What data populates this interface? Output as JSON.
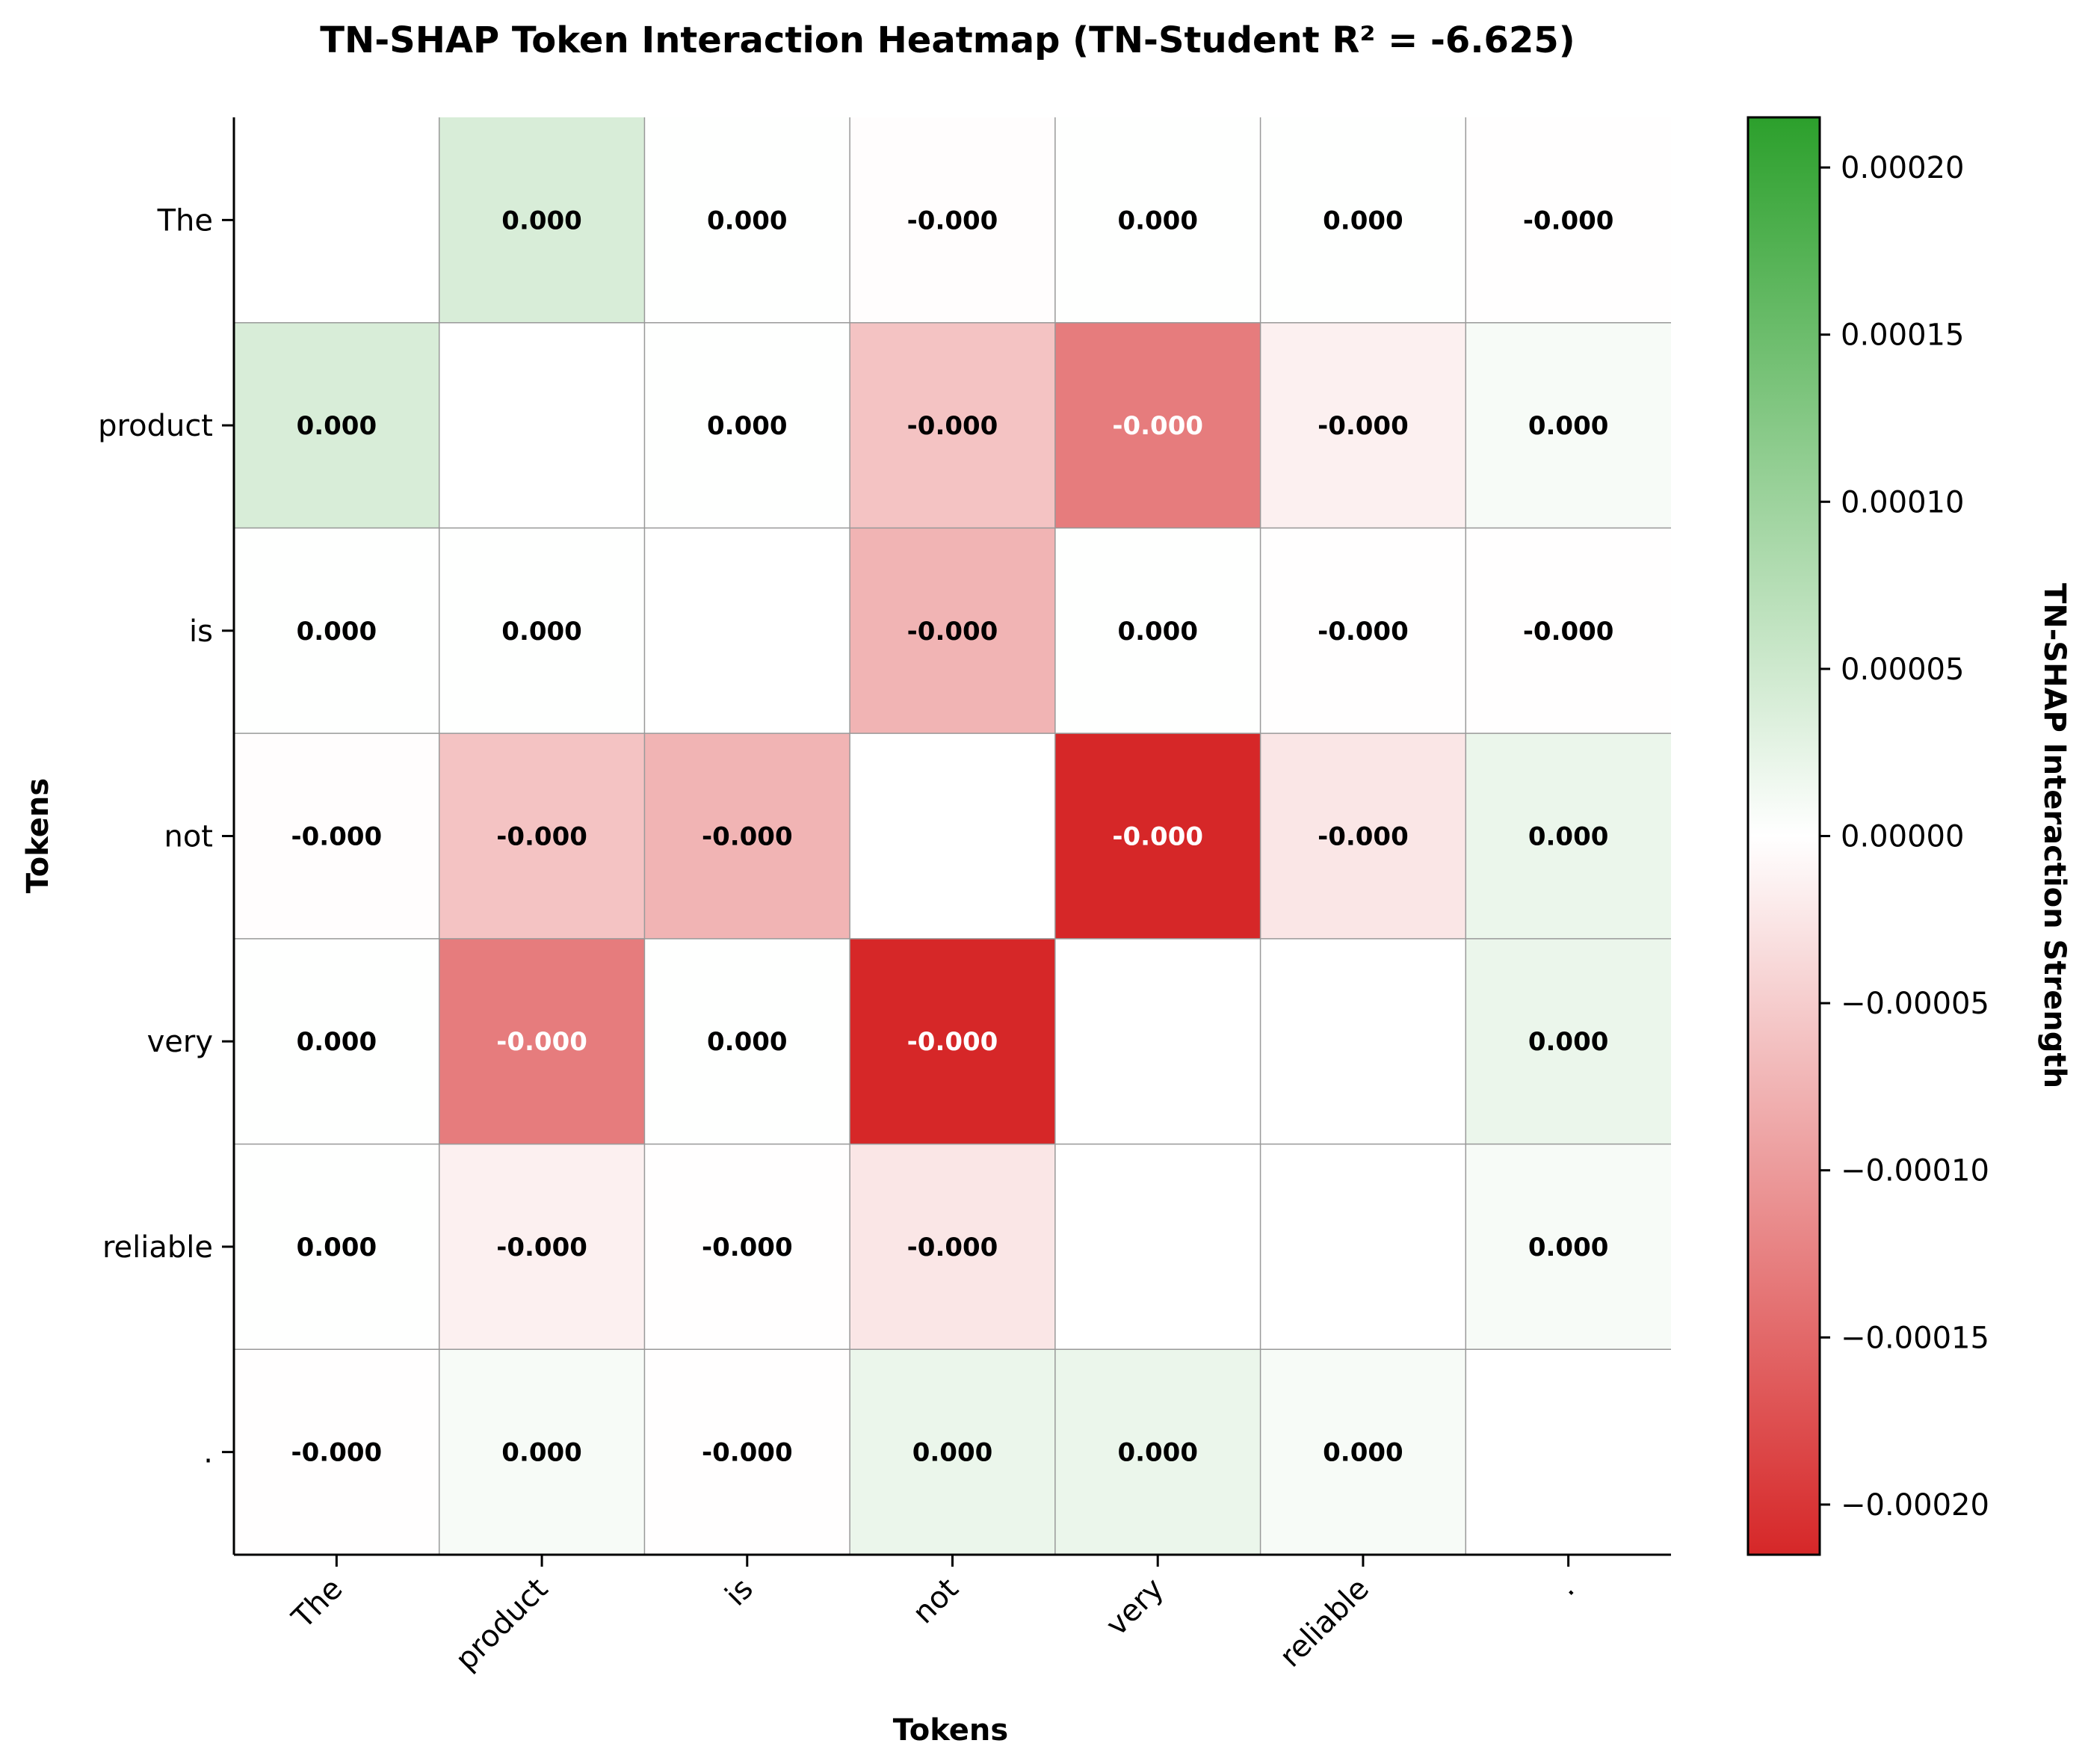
{
  "chart_data": {
    "type": "heatmap",
    "title": "TN-SHAP Token Interaction Heatmap (TN-Student R² = -6.625)",
    "xlabel": "Tokens",
    "ylabel": "Tokens",
    "x_tokens": [
      "The",
      "product",
      "is",
      "not",
      "very",
      "reliable",
      "."
    ],
    "y_tokens": [
      "The",
      "product",
      "is",
      "not",
      "very",
      "reliable",
      "."
    ],
    "values": [
      [
        null,
        4e-05,
        1e-06,
        -2e-06,
        1e-06,
        1e-06,
        -1e-06
      ],
      [
        4e-05,
        null,
        1e-06,
        -6e-05,
        -0.00013,
        -1.5e-05,
        8e-06
      ],
      [
        1e-06,
        1e-06,
        null,
        -7.5e-05,
        1e-06,
        -1e-06,
        -1e-06
      ],
      [
        -2e-06,
        -6e-05,
        -7.5e-05,
        null,
        -0.000215,
        -2.5e-05,
        2e-05
      ],
      [
        1e-06,
        -0.00013,
        1e-06,
        -0.000215,
        null,
        null,
        2e-05
      ],
      [
        1e-06,
        -1.5e-05,
        -1e-06,
        -2.5e-05,
        null,
        null,
        8e-06
      ],
      [
        -1e-06,
        8e-06,
        -1e-06,
        2e-05,
        2e-05,
        8e-06,
        null
      ]
    ],
    "labels": [
      [
        "",
        "0.000",
        "0.000",
        "-0.000",
        "0.000",
        "0.000",
        "-0.000"
      ],
      [
        "0.000",
        "",
        "0.000",
        "-0.000",
        "-0.000",
        "-0.000",
        "0.000"
      ],
      [
        "0.000",
        "0.000",
        "",
        "-0.000",
        "0.000",
        "-0.000",
        "-0.000"
      ],
      [
        "-0.000",
        "-0.000",
        "-0.000",
        "",
        "-0.000",
        "-0.000",
        "0.000"
      ],
      [
        "0.000",
        "-0.000",
        "0.000",
        "-0.000",
        "",
        "",
        "0.000"
      ],
      [
        "0.000",
        "-0.000",
        "-0.000",
        "-0.000",
        "",
        "",
        "0.000"
      ],
      [
        "-0.000",
        "0.000",
        "-0.000",
        "0.000",
        "0.000",
        "0.000",
        ""
      ]
    ],
    "vmin": -0.000215,
    "vmax": 0.000215,
    "colormap": {
      "negative": "#d62728",
      "zero": "#ffffff",
      "positive": "#2ca02c"
    },
    "colorbar": {
      "label": "TN-SHAP Interaction Strength",
      "ticks": [
        0.0002,
        0.00015,
        0.0001,
        5e-05,
        0,
        -5e-05,
        -0.0001,
        -0.00015,
        -0.0002
      ],
      "tick_labels": [
        "0.00020",
        "0.00015",
        "0.00010",
        "0.00005",
        "0.00000",
        "−0.00005",
        "−0.00010",
        "−0.00015",
        "−0.00020"
      ]
    },
    "grid": true
  }
}
